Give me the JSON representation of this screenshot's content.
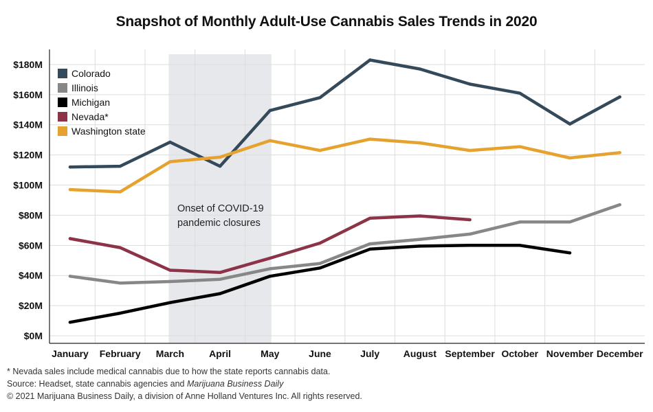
{
  "chart_data": {
    "type": "line",
    "title": "Snapshot of Monthly Adult-Use Cannabis Sales Trends in 2020",
    "categories": [
      "January",
      "February",
      "March",
      "April",
      "May",
      "June",
      "July",
      "August",
      "September",
      "October",
      "November",
      "December"
    ],
    "y_ticks": [
      {
        "value": 0,
        "label": "$0M"
      },
      {
        "value": 20,
        "label": "$20M"
      },
      {
        "value": 40,
        "label": "$40M"
      },
      {
        "value": 60,
        "label": "$60M"
      },
      {
        "value": 80,
        "label": "$80M"
      },
      {
        "value": 100,
        "label": "$100M"
      },
      {
        "value": 120,
        "label": "$120M"
      },
      {
        "value": 140,
        "label": "$140M"
      },
      {
        "value": 160,
        "label": "$160M"
      },
      {
        "value": 180,
        "label": "$180M"
      }
    ],
    "ylim": [
      -5,
      190
    ],
    "grid": true,
    "legend_position": "top-left",
    "series": [
      {
        "name": "Colorado",
        "color": "#34495a",
        "values": [
          112,
          112.5,
          128.5,
          112.5,
          149.5,
          158,
          183,
          177,
          167,
          161,
          140.5,
          158.5
        ]
      },
      {
        "name": "Illinois",
        "color": "#878787",
        "values": [
          39.5,
          35,
          36,
          37.5,
          44.5,
          48,
          61,
          64,
          67.5,
          75.5,
          75.5,
          87
        ]
      },
      {
        "name": "Michigan",
        "color": "#000000",
        "values": [
          9,
          15,
          22,
          28,
          39.5,
          45,
          57.5,
          59.5,
          60,
          60,
          55,
          null
        ]
      },
      {
        "name": "Nevada*",
        "color": "#8c3347",
        "values": [
          64.5,
          58.5,
          43.5,
          42,
          51.5,
          61.5,
          78,
          79.5,
          77,
          null,
          null,
          null
        ]
      },
      {
        "name": "Washington state",
        "color": "#e6a22e",
        "values": [
          97,
          95.5,
          115.5,
          118.5,
          129.5,
          123,
          130.5,
          128,
          123,
          125.5,
          118,
          121.5
        ]
      }
    ],
    "shaded_region": {
      "from": "March",
      "to": "May",
      "color": "#e6e8eb"
    },
    "annotation": {
      "lines": [
        "Onset of COVID-19",
        "pandemic closures"
      ]
    }
  },
  "footer": {
    "footnote": "* Nevada sales include medical cannabis due to how the state reports cannabis data.",
    "source_prefix": "Source: Headset, state cannabis agencies and ",
    "source_italic": "Marijuana Business Daily",
    "copyright": "© 2021 Marijuana Business Daily, a division of Anne Holland Ventures Inc. All rights reserved."
  }
}
